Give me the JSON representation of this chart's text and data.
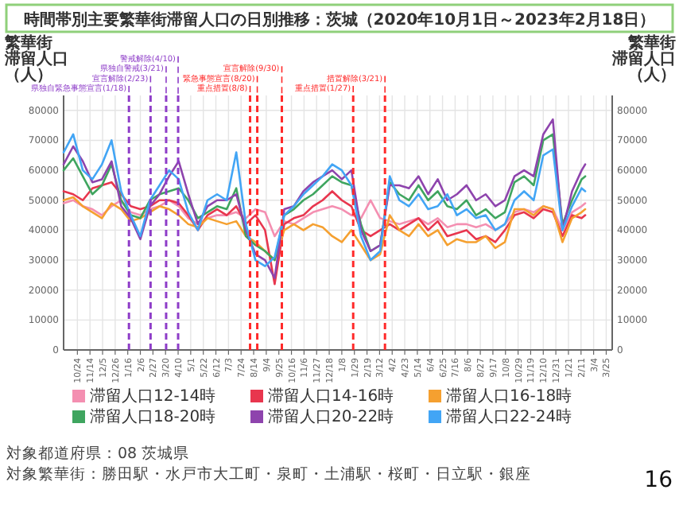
{
  "chart_data": {
    "type": "line",
    "title": "時間帯別主要繁華街滞留人口の日別推移：茨城（2020年10月1日～2023年2月18日）",
    "ylabel": "繁華街滞留人口（人）",
    "y2label": "繁華街滞留人口（人）",
    "x": [
      "2020-10-01",
      "2020-10-17",
      "2020-11-02",
      "2020-11-18",
      "2020-12-04",
      "2020-12-20",
      "2021-01-05",
      "2021-01-21",
      "2021-02-06",
      "2021-02-22",
      "2021-03-10",
      "2021-03-26",
      "2021-04-11",
      "2021-04-27",
      "2021-05-13",
      "2021-05-29",
      "2021-06-14",
      "2021-06-30",
      "2021-07-16",
      "2021-08-01",
      "2021-08-17",
      "2021-09-02",
      "2021-09-18",
      "2021-10-04",
      "2021-10-20",
      "2021-11-05",
      "2021-11-21",
      "2021-12-07",
      "2021-12-23",
      "2022-01-08",
      "2022-01-24",
      "2022-02-09",
      "2022-02-25",
      "2022-03-13",
      "2022-03-29",
      "2022-04-14",
      "2022-04-30",
      "2022-05-16",
      "2022-06-01",
      "2022-06-17",
      "2022-07-03",
      "2022-07-19",
      "2022-08-04",
      "2022-08-20",
      "2022-09-05",
      "2022-09-21",
      "2022-10-07",
      "2022-10-23",
      "2022-11-08",
      "2022-11-24",
      "2022-12-10",
      "2022-12-26",
      "2023-01-11",
      "2023-01-27",
      "2023-02-12",
      "2023-02-18"
    ],
    "series": [
      {
        "name": "滞留人口12-14時",
        "color": "#f48fb1",
        "values": [
          49000,
          50000,
          48000,
          47000,
          45000,
          48000,
          50000,
          46000,
          45000,
          47000,
          48000,
          50000,
          48000,
          44000,
          42000,
          44000,
          45000,
          45000,
          46000,
          44000,
          47000,
          46000,
          38000,
          43000,
          42000,
          44000,
          46000,
          47000,
          48000,
          47000,
          45000,
          44000,
          50000,
          44000,
          43000,
          42000,
          43000,
          44000,
          42000,
          44000,
          41000,
          42000,
          42000,
          41000,
          42000,
          40000,
          42000,
          46000,
          47000,
          46000,
          48000,
          47000,
          40000,
          46000,
          48000,
          49000
        ]
      },
      {
        "name": "滞留人口14-16時",
        "color": "#e8364e",
        "values": [
          53000,
          52000,
          50000,
          54000,
          55000,
          56000,
          52000,
          48000,
          47000,
          48000,
          50000,
          50000,
          49000,
          45000,
          40000,
          45000,
          47000,
          45000,
          48000,
          42000,
          45000,
          40000,
          22000,
          42000,
          44000,
          45000,
          48000,
          50000,
          53000,
          50000,
          48000,
          40000,
          38000,
          40000,
          42000,
          40000,
          42000,
          44000,
          40000,
          43000,
          38000,
          39000,
          40000,
          37000,
          38000,
          36000,
          40000,
          45000,
          46000,
          44000,
          47000,
          46000,
          38000,
          45000,
          44000,
          45000
        ]
      },
      {
        "name": "滞留人口16-18時",
        "color": "#f5a030",
        "values": [
          50000,
          51000,
          48000,
          46000,
          44000,
          49000,
          47000,
          43000,
          44000,
          46000,
          48000,
          47000,
          45000,
          42000,
          41000,
          44000,
          43000,
          42000,
          43000,
          38000,
          36000,
          33000,
          30000,
          40000,
          42000,
          40000,
          42000,
          41000,
          38000,
          36000,
          40000,
          35000,
          30000,
          32000,
          45000,
          40000,
          38000,
          42000,
          38000,
          40000,
          35000,
          37000,
          36000,
          36000,
          38000,
          34000,
          36000,
          47000,
          47000,
          45000,
          48000,
          47000,
          36000,
          44000,
          46000,
          47000
        ]
      },
      {
        "name": "滞留人口18-20時",
        "color": "#3fa55f",
        "values": [
          60000,
          64000,
          58000,
          52000,
          55000,
          62000,
          50000,
          45000,
          44000,
          50000,
          52000,
          53000,
          54000,
          50000,
          44000,
          46000,
          48000,
          47000,
          54000,
          38000,
          35000,
          33000,
          30000,
          45000,
          47000,
          50000,
          52000,
          55000,
          58000,
          56000,
          55000,
          42000,
          33000,
          35000,
          56000,
          52000,
          50000,
          55000,
          50000,
          53000,
          48000,
          47000,
          50000,
          45000,
          47000,
          44000,
          46000,
          56000,
          58000,
          55000,
          70000,
          72000,
          42000,
          50000,
          57000,
          58000
        ]
      },
      {
        "name": "滞留人口20-22時",
        "color": "#8e44ad",
        "values": [
          62000,
          68000,
          63000,
          56000,
          57000,
          63000,
          48000,
          44000,
          37000,
          48000,
          52000,
          58000,
          63000,
          52000,
          42000,
          48000,
          50000,
          50000,
          52000,
          40000,
          32000,
          30000,
          24000,
          47000,
          48000,
          53000,
          56000,
          58000,
          60000,
          57000,
          60000,
          40000,
          33000,
          35000,
          55000,
          55000,
          54000,
          58000,
          52000,
          57000,
          50000,
          52000,
          55000,
          50000,
          52000,
          48000,
          50000,
          58000,
          60000,
          58000,
          72000,
          77000,
          40000,
          53000,
          60000,
          62000
        ]
      },
      {
        "name": "滞留人口22-24時",
        "color": "#42a5f5",
        "values": [
          66000,
          72000,
          60000,
          57000,
          62000,
          70000,
          53000,
          45000,
          38000,
          50000,
          55000,
          60000,
          57000,
          46000,
          40000,
          50000,
          52000,
          50000,
          66000,
          42000,
          30000,
          28000,
          31000,
          45000,
          48000,
          52000,
          55000,
          58000,
          62000,
          60000,
          55000,
          38000,
          30000,
          33000,
          58000,
          50000,
          48000,
          52000,
          47000,
          48000,
          52000,
          45000,
          47000,
          44000,
          45000,
          40000,
          42000,
          50000,
          53000,
          50000,
          65000,
          67000,
          40000,
          48000,
          54000,
          53000
        ]
      }
    ],
    "xlim": [
      "2020-10-01",
      "2023-04-04"
    ],
    "xticks": [
      {
        "value": "2020-10-24",
        "label": "10/24"
      },
      {
        "value": "2020-11-14",
        "label": "11/14"
      },
      {
        "value": "2020-12-05",
        "label": "12/5"
      },
      {
        "value": "2020-12-26",
        "label": "12/26"
      },
      {
        "value": "2021-01-16",
        "label": "1/16"
      },
      {
        "value": "2021-02-06",
        "label": "2/6"
      },
      {
        "value": "2021-02-27",
        "label": "2/27"
      },
      {
        "value": "2021-03-20",
        "label": "3/20"
      },
      {
        "value": "2021-04-10",
        "label": "4/10"
      },
      {
        "value": "2021-05-01",
        "label": "5/1"
      },
      {
        "value": "2021-05-22",
        "label": "5/22"
      },
      {
        "value": "2021-06-12",
        "label": "6/12"
      },
      {
        "value": "2021-07-03",
        "label": "7/3"
      },
      {
        "value": "2021-07-24",
        "label": "7/24"
      },
      {
        "value": "2021-08-14",
        "label": "8/14"
      },
      {
        "value": "2021-09-04",
        "label": "9/4"
      },
      {
        "value": "2021-09-25",
        "label": "9/25"
      },
      {
        "value": "2021-10-16",
        "label": "10/16"
      },
      {
        "value": "2021-11-06",
        "label": "11/6"
      },
      {
        "value": "2021-11-27",
        "label": "11/27"
      },
      {
        "value": "2021-12-18",
        "label": "12/18"
      },
      {
        "value": "2022-01-08",
        "label": "1/8"
      },
      {
        "value": "2022-01-29",
        "label": "1/29"
      },
      {
        "value": "2022-02-19",
        "label": "2/19"
      },
      {
        "value": "2022-03-12",
        "label": "3/12"
      },
      {
        "value": "2022-04-02",
        "label": "4/2"
      },
      {
        "value": "2022-04-23",
        "label": "4/23"
      },
      {
        "value": "2022-05-14",
        "label": "5/14"
      },
      {
        "value": "2022-06-04",
        "label": "6/4"
      },
      {
        "value": "2022-06-25",
        "label": "6/25"
      },
      {
        "value": "2022-07-16",
        "label": "7/16"
      },
      {
        "value": "2022-08-06",
        "label": "8/6"
      },
      {
        "value": "2022-08-27",
        "label": "8/27"
      },
      {
        "value": "2022-09-17",
        "label": "9/17"
      },
      {
        "value": "2022-10-08",
        "label": "10/8"
      },
      {
        "value": "2022-10-29",
        "label": "10/29"
      },
      {
        "value": "2022-11-19",
        "label": "11/19"
      },
      {
        "value": "2022-12-10",
        "label": "12/10"
      },
      {
        "value": "2022-12-31",
        "label": "12/31"
      },
      {
        "value": "2023-01-21",
        "label": "1/21"
      },
      {
        "value": "2023-02-11",
        "label": "2/11"
      },
      {
        "value": "2023-03-04",
        "label": "3/4"
      },
      {
        "value": "2023-03-25",
        "label": "3/25"
      }
    ],
    "ylim": [
      0,
      85000
    ],
    "yticks": [
      0,
      10000,
      20000,
      30000,
      40000,
      50000,
      60000,
      70000,
      80000
    ],
    "y2lim": [
      0,
      85000
    ],
    "y2ticks": [
      0,
      10000,
      20000,
      30000,
      40000,
      50000,
      60000,
      70000,
      80000
    ],
    "grid": true,
    "legend": "bottom",
    "ref_lines": [
      {
        "axis": "x",
        "value": "2021-01-18",
        "label": "県独自緊急事態宣言(1/18)",
        "color": "#8e3dc8",
        "line_style": "dashed"
      },
      {
        "axis": "x",
        "value": "2021-02-23",
        "label": "宣言解除(2/23)",
        "color": "#8e3dc8",
        "line_style": "dashed"
      },
      {
        "axis": "x",
        "value": "2021-03-21",
        "label": "県独自警戒(3/21)",
        "color": "#8e3dc8",
        "line_style": "dashed"
      },
      {
        "axis": "x",
        "value": "2021-04-10",
        "label": "警戒解除(4/10)",
        "color": "#8e3dc8",
        "line_style": "dashed"
      },
      {
        "axis": "x",
        "value": "2021-08-08",
        "label": "重点措置(8/8)",
        "color": "#ff2a2a",
        "line_style": "dashed"
      },
      {
        "axis": "x",
        "value": "2021-08-20",
        "label": "緊急事態宣言(8/20)",
        "color": "#ff2a2a",
        "line_style": "dashed"
      },
      {
        "axis": "x",
        "value": "2021-09-30",
        "label": "宣言解除(9/30)",
        "color": "#ff2a2a",
        "line_style": "dashed"
      },
      {
        "axis": "x",
        "value": "2022-01-27",
        "label": "重点措置(1/27)",
        "color": "#ff2a2a",
        "line_style": "dashed"
      },
      {
        "axis": "x",
        "value": "2022-03-21",
        "label": "措置解除(3/21)",
        "color": "#ff2a2a",
        "line_style": "dashed"
      }
    ],
    "annotations": [
      "対象都道府県：08 茨城県",
      "対象繁華街：勝田駅・水戸市大工町・泉町・土浦駅・桜町・日立駅・銀座",
      "16"
    ]
  }
}
